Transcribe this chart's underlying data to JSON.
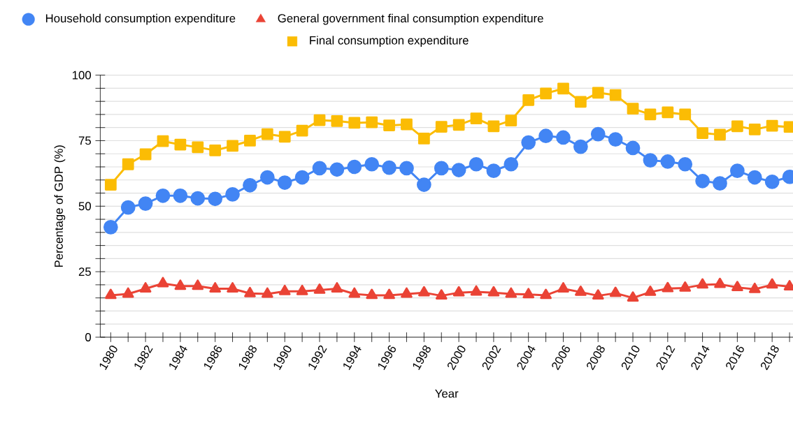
{
  "chart_data": {
    "type": "line",
    "xlabel": "Year",
    "ylabel": "Percentage of GDP (%)",
    "x": [
      1980,
      1981,
      1982,
      1983,
      1984,
      1985,
      1986,
      1987,
      1988,
      1989,
      1990,
      1991,
      1992,
      1993,
      1994,
      1995,
      1996,
      1997,
      1998,
      1999,
      2000,
      2001,
      2002,
      2003,
      2004,
      2005,
      2006,
      2007,
      2008,
      2009,
      2010,
      2011,
      2012,
      2013,
      2014,
      2015,
      2016,
      2017,
      2018,
      2019
    ],
    "series": [
      {
        "name": "Household consumption expenditure",
        "color": "#4285f4",
        "marker": "circle",
        "values": [
          42,
          49.5,
          51,
          54,
          54,
          53,
          52.8,
          54.5,
          58,
          61,
          59,
          61,
          64.5,
          64,
          65,
          66,
          64.7,
          64.5,
          58.2,
          64.5,
          63.8,
          66,
          63.5,
          66,
          74.3,
          76.8,
          76.2,
          72.7,
          77.5,
          75.5,
          72.2,
          67.5,
          67,
          66,
          59.6,
          58.7,
          63.5,
          61,
          59.3,
          61.2
        ]
      },
      {
        "name": "General government final consumption expenditure",
        "color": "#ea4335",
        "marker": "triangle",
        "values": [
          16,
          16.5,
          18.5,
          20.5,
          19.5,
          19.5,
          18.5,
          18.5,
          16.7,
          16.5,
          17.5,
          17.5,
          18,
          18.5,
          16.5,
          16,
          16,
          16.5,
          17,
          15.8,
          17,
          17.3,
          17,
          16.5,
          16.3,
          16,
          18.5,
          17.2,
          15.8,
          16.8,
          15,
          17.2,
          18.6,
          18.8,
          20,
          20.2,
          19,
          18.3,
          20,
          19.3
        ]
      },
      {
        "name": "Final consumption expenditure",
        "color": "#fbbc04",
        "marker": "square",
        "values": [
          58.2,
          66,
          69.8,
          74.8,
          73.5,
          72.5,
          71.3,
          73,
          75,
          77.5,
          76.5,
          78.8,
          82.8,
          82.5,
          81.8,
          82,
          80.8,
          81.2,
          75.8,
          80.3,
          81,
          83.5,
          80.5,
          82.7,
          90.5,
          93,
          94.9,
          89.8,
          93.3,
          92.4,
          87.2,
          85,
          85.8,
          85,
          77.9,
          77.3,
          80.5,
          79.3,
          80.7,
          80.2
        ]
      }
    ],
    "xlim": [
      1979.4,
      2019.2
    ],
    "ylim": [
      0,
      100
    ],
    "xticks": [
      1980,
      {
        "value": 1981,
        "label": null
      },
      1982,
      {
        "value": 1983,
        "label": null
      },
      1984,
      {
        "value": 1985,
        "label": null
      },
      1986,
      {
        "value": 1987,
        "label": null
      },
      1988,
      {
        "value": 1989,
        "label": null
      },
      1990,
      {
        "value": 1991,
        "label": null
      },
      1992,
      {
        "value": 1993,
        "label": null
      },
      1994,
      {
        "value": 1995,
        "label": null
      },
      1996,
      {
        "value": 1997,
        "label": null
      },
      1998,
      {
        "value": 1999,
        "label": null
      },
      2000,
      {
        "value": 2001,
        "label": null
      },
      2002,
      {
        "value": 2003,
        "label": null
      },
      2004,
      {
        "value": 2005,
        "label": null
      },
      2006,
      {
        "value": 2007,
        "label": null
      },
      2008,
      {
        "value": 2009,
        "label": null
      },
      2010,
      {
        "value": 2011,
        "label": null
      },
      2012,
      {
        "value": 2013,
        "label": null
      },
      2014,
      {
        "value": 2015,
        "label": null
      },
      2016,
      {
        "value": 2017,
        "label": null
      },
      2018,
      {
        "value": 2019,
        "label": null
      }
    ],
    "yticks": [
      0,
      {
        "value": 5,
        "label": null
      },
      {
        "value": 10,
        "label": null
      },
      {
        "value": 15,
        "label": null
      },
      {
        "value": 20,
        "label": null
      },
      25,
      {
        "value": 30,
        "label": null
      },
      {
        "value": 35,
        "label": null
      },
      {
        "value": 40,
        "label": null
      },
      {
        "value": 45,
        "label": null
      },
      50,
      {
        "value": 55,
        "label": null
      },
      {
        "value": 60,
        "label": null
      },
      {
        "value": 65,
        "label": null
      },
      {
        "value": 70,
        "label": null
      },
      75,
      {
        "value": 80,
        "label": null
      },
      {
        "value": 85,
        "label": null
      },
      {
        "value": 90,
        "label": null
      },
      {
        "value": 95,
        "label": null
      },
      100
    ],
    "grid": "y",
    "legend": "top",
    "line_style": "solid"
  }
}
